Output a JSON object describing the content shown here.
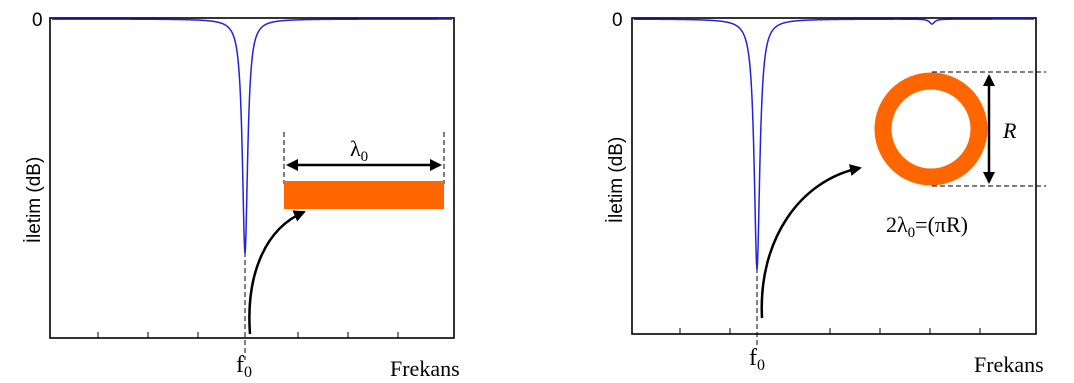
{
  "colors": {
    "curve": "#2222dd",
    "element": "#ff6600",
    "frame": "#000000"
  },
  "left_panel": {
    "y_label": "İletim (dB)",
    "y_zero": "0",
    "x_label": "Frekans",
    "f0_main": "f",
    "f0_sub": "0",
    "lambda_main": "λ",
    "lambda_sub": "0",
    "element_shape": "straight-strip"
  },
  "right_panel": {
    "y_label": "İletim (dB)",
    "y_zero": "0",
    "x_label": "Frekans",
    "f0_main": "f",
    "f0_sub": "0",
    "radius_label": "R",
    "formula_prefix": "2λ",
    "formula_sub": "0",
    "formula_suffix": "=(πR)",
    "element_shape": "ring"
  }
}
